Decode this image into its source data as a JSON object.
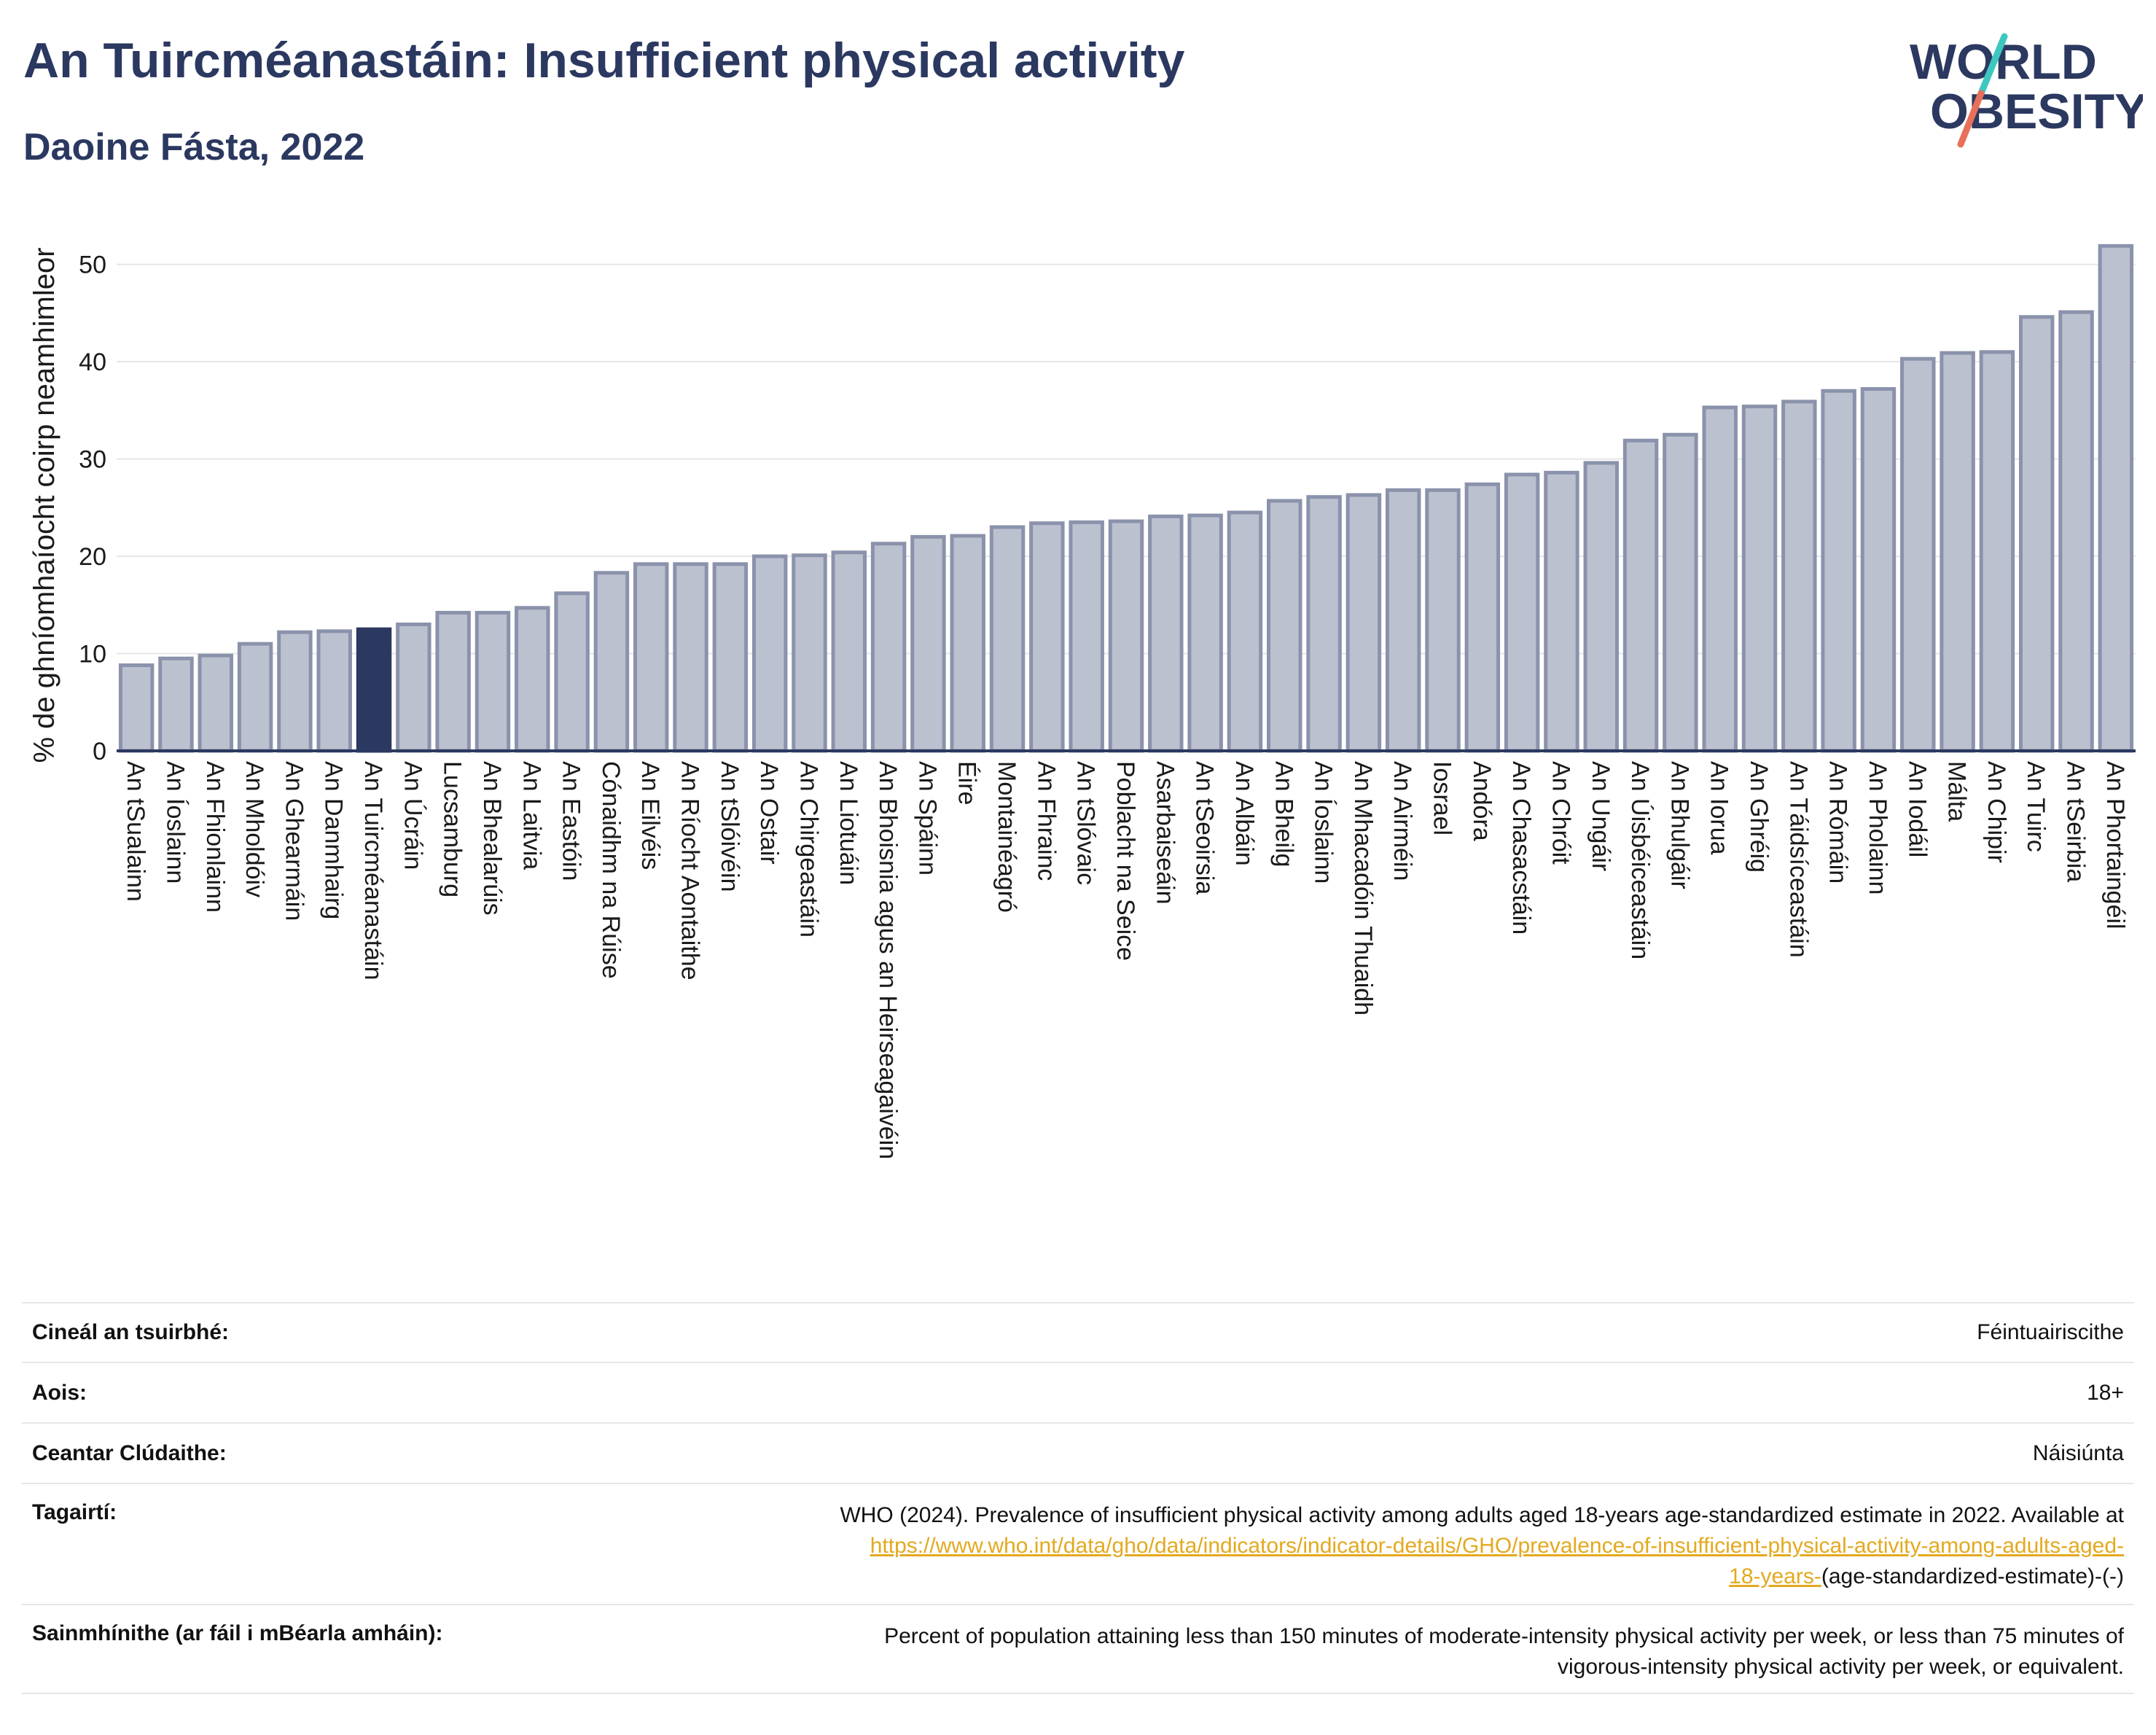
{
  "header": {
    "title": "An Tuircméanastáin: Insufficient physical activity",
    "subtitle": "Daoine Fásta, 2022"
  },
  "logo": {
    "line1": "WORLD",
    "line2": "OBESITY",
    "slash_colors": [
      "#3ec7c0",
      "#e8705a"
    ],
    "text_color": "#2b3860"
  },
  "colors": {
    "bar": "#bcc1d0",
    "bar_edge": "#8b92ab",
    "highlight": "#2b3860",
    "axis": "#2b3860",
    "grid": "#e6e6e6"
  },
  "chart_data": {
    "type": "bar",
    "ylabel": "% de ghníomhaíocht coirp neamhimleor",
    "xlabel": "",
    "ylim": [
      0,
      55
    ],
    "yticks": [
      0,
      10,
      20,
      30,
      40,
      50
    ],
    "grid": true,
    "highlight": "An Tuircméanastáin",
    "categories": [
      "An tSualainn",
      "An Íoslainn",
      "An Fhionlainn",
      "An Mholdóiv",
      "An Ghearmáin",
      "An Danmhairg",
      "An Tuircméanastáin",
      "An Úcráin",
      "Lucsamburg",
      "An Bhealarúis",
      "An Laitvia",
      "An Eastóin",
      "Cónaidhm na Rúise",
      "An Eilvéis",
      "An Ríocht Aontaithe",
      "An tSlóivéin",
      "An Ostair",
      "An Chirgeastáin",
      "An Liotuáin",
      "An Bhoisnia agus an Heirseagaivéin",
      "An Spáinn",
      "Éire",
      "Montainéagró",
      "An Fhrainc",
      "An tSlóvaic",
      "Poblacht na Seice",
      "Asarbaiseáin",
      "An tSeoirsia",
      "An Albáin",
      "An Bheilg",
      "An Íoslainn",
      "An Mhacadóin Thuaidh",
      "An Airméin",
      "Iosrael",
      "Andóra",
      "An Chasacstáin",
      "An Chróit",
      "An Ungáir",
      "An Úisbéiceastáin",
      "An Bhulgáir",
      "An Iorua",
      "An Ghréig",
      "An Táidsíceastáin",
      "An Rómáin",
      "An Pholainn",
      "An Iodáil",
      "Málta",
      "An Chipir",
      "An Tuirc",
      "An tSeirbia",
      "An Phortaingéil"
    ],
    "values": [
      8.8,
      9.5,
      9.8,
      11.0,
      12.2,
      12.3,
      12.5,
      13.0,
      14.2,
      14.2,
      14.7,
      16.2,
      18.3,
      19.2,
      19.2,
      19.2,
      20.0,
      20.1,
      20.4,
      21.3,
      22.0,
      22.1,
      23.0,
      23.4,
      23.5,
      23.6,
      24.1,
      24.2,
      24.5,
      25.7,
      26.1,
      26.3,
      26.8,
      26.8,
      27.4,
      28.4,
      28.6,
      29.6,
      31.9,
      32.5,
      35.3,
      35.4,
      35.9,
      37.0,
      37.2,
      40.3,
      40.9,
      41.0,
      44.6,
      45.1,
      51.9
    ]
  },
  "info_table": [
    {
      "key": "Cineál an tsuirbhé:",
      "value": "Féintuairiscithe"
    },
    {
      "key": "Aois:",
      "value": "18+"
    },
    {
      "key": "Ceantar Clúdaithe:",
      "value": "Náisiúnta"
    },
    {
      "key": "Tagairtí:",
      "value_pre": "WHO (2024). Prevalence of insufficient physical activity among adults aged 18-years age-standardized estimate in 2022. Available at",
      "link_part1": "https://www.who.int/data/gho/data/indicators/indicator-details/GHO/prevalence-of-insufficient-physical-activity-among-adults-aged-",
      "link_part2": "18-years-",
      "value_post": "(age-standardized-estimate)-(-)"
    },
    {
      "key": "Sainmhínithe (ar fáil i mBéarla amháin):",
      "value_line1": "Percent of population attaining less than 150 minutes of moderate-intensity physical activity per week, or less than 75 minutes of",
      "value_line2": "vigorous-intensity physical activity per week, or equivalent."
    }
  ]
}
